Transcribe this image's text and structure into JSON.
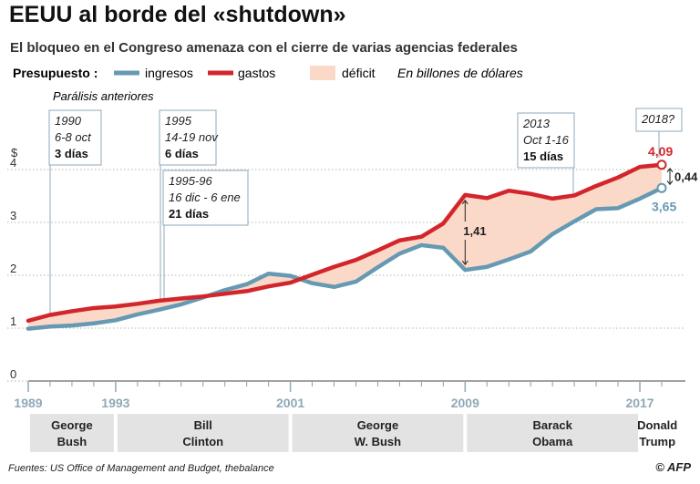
{
  "title": "EEUU al borde del «shutdown»",
  "subtitle": "El bloqueo en el Congreso amenaza con el cierre de varias agencias federales",
  "legend": {
    "prefix": "Presupuesto :",
    "income": "ingresos",
    "spending": "gastos",
    "deficit": "déficit",
    "unit": "En billones de dólares"
  },
  "colors": {
    "income": "#6699b3",
    "spending": "#d2262c",
    "deficit_fill": "#fbd9c8",
    "gray": "#8fa9b8"
  },
  "chart_data": {
    "type": "line",
    "ylabel": "$",
    "ylim": [
      0,
      4.5
    ],
    "yticks": [
      "0",
      "1",
      "2",
      "3",
      "4"
    ],
    "x": [
      1989,
      1990,
      1991,
      1992,
      1993,
      1994,
      1995,
      1996,
      1997,
      1998,
      1999,
      2000,
      2001,
      2002,
      2003,
      2004,
      2005,
      2006,
      2007,
      2008,
      2009,
      2010,
      2011,
      2012,
      2013,
      2014,
      2015,
      2016,
      2017,
      2018
    ],
    "xtick_labels": [
      "1989",
      "1993",
      "2001",
      "2009",
      "2017"
    ],
    "series": [
      {
        "name": "ingresos",
        "values": [
          0.99,
          1.03,
          1.05,
          1.09,
          1.15,
          1.26,
          1.35,
          1.45,
          1.58,
          1.72,
          1.83,
          2.03,
          1.99,
          1.85,
          1.78,
          1.88,
          2.15,
          2.41,
          2.57,
          2.52,
          2.1,
          2.16,
          2.3,
          2.45,
          2.78,
          3.02,
          3.25,
          3.27,
          3.45,
          3.65
        ]
      },
      {
        "name": "gastos",
        "values": [
          1.14,
          1.25,
          1.32,
          1.38,
          1.41,
          1.46,
          1.52,
          1.56,
          1.6,
          1.65,
          1.7,
          1.79,
          1.86,
          2.01,
          2.16,
          2.29,
          2.47,
          2.66,
          2.73,
          2.98,
          3.52,
          3.46,
          3.6,
          3.54,
          3.45,
          3.51,
          3.69,
          3.85,
          4.05,
          4.09
        ]
      }
    ],
    "end_labels": {
      "spending": "4,09",
      "income": "3,65",
      "gap_2018": "0,44",
      "gap_2009": "1,41"
    },
    "annotations_title": "Parálisis anteriores",
    "shutdowns": [
      {
        "year": "1990",
        "dates": "6-8 oct",
        "days": "3 días"
      },
      {
        "year": "1995",
        "dates": "14-19 nov",
        "days": "6 días"
      },
      {
        "year": "1995-96",
        "dates": "16 dic - 6 ene",
        "days": "21 días"
      },
      {
        "year": "2013",
        "dates": "Oct 1-16",
        "days": "15 días"
      },
      {
        "year": "2018?",
        "dates": "",
        "days": ""
      }
    ],
    "presidents": [
      {
        "line1": "George",
        "line2": "Bush"
      },
      {
        "line1": "Bill",
        "line2": "Clinton"
      },
      {
        "line1": "George",
        "line2": "W. Bush"
      },
      {
        "line1": "Barack",
        "line2": "Obama"
      },
      {
        "line1": "Donald",
        "line2": "Trump"
      }
    ]
  },
  "source": "Fuentes: US Office of Management and Budget, thebalance",
  "logo": "© AFP"
}
